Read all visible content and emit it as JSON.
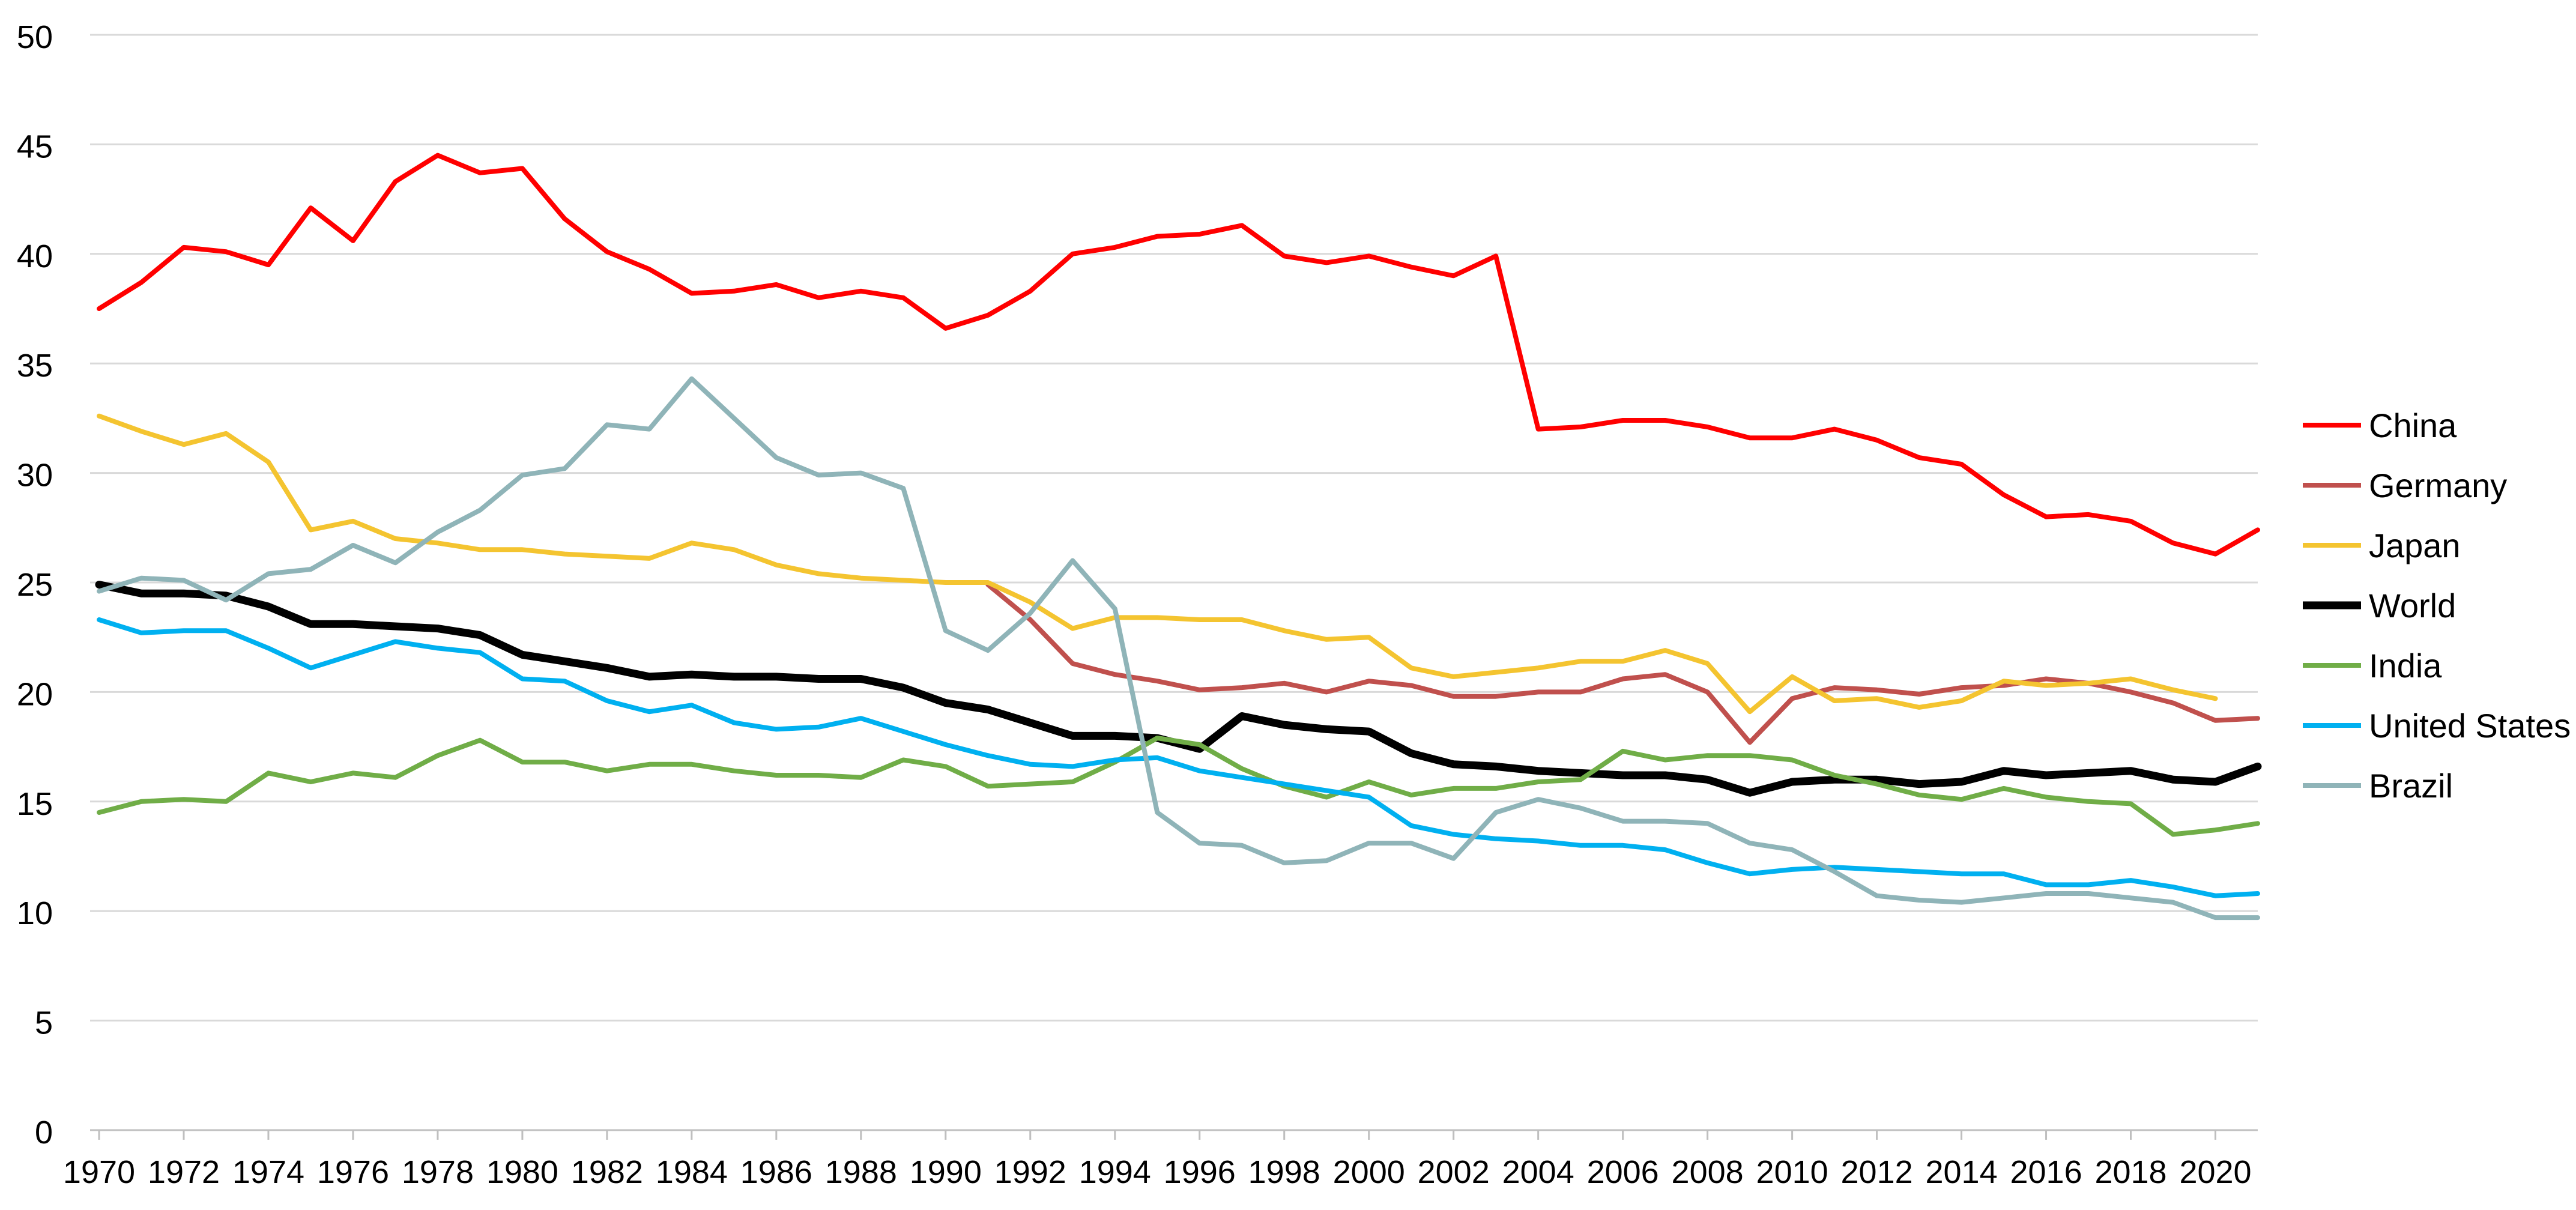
{
  "chart_data": {
    "type": "line",
    "title": "",
    "xlabel": "",
    "ylabel": "",
    "xlim": [
      1970,
      2021
    ],
    "ylim": [
      0,
      50
    ],
    "y_ticks": [
      0,
      5,
      10,
      15,
      20,
      25,
      30,
      35,
      40,
      45,
      50
    ],
    "x_ticks": [
      1970,
      1972,
      1974,
      1976,
      1978,
      1980,
      1982,
      1984,
      1986,
      1988,
      1990,
      1992,
      1994,
      1996,
      1998,
      2000,
      2002,
      2004,
      2006,
      2008,
      2010,
      2012,
      2014,
      2016,
      2018,
      2020
    ],
    "grid": "horizontal",
    "legend_position": "right",
    "x": [
      1970,
      1971,
      1972,
      1973,
      1974,
      1975,
      1976,
      1977,
      1978,
      1979,
      1980,
      1981,
      1982,
      1983,
      1984,
      1985,
      1986,
      1987,
      1988,
      1989,
      1990,
      1991,
      1992,
      1993,
      1994,
      1995,
      1996,
      1997,
      1998,
      1999,
      2000,
      2001,
      2002,
      2003,
      2004,
      2005,
      2006,
      2007,
      2008,
      2009,
      2010,
      2011,
      2012,
      2013,
      2014,
      2015,
      2016,
      2017,
      2018,
      2019,
      2020,
      2021
    ],
    "series": [
      {
        "name": "China",
        "color": "#ff0000",
        "values": [
          37.5,
          38.7,
          40.3,
          40.1,
          39.5,
          42.1,
          40.6,
          43.3,
          44.5,
          43.7,
          43.9,
          41.6,
          40.1,
          39.3,
          38.2,
          38.3,
          38.6,
          38.0,
          38.3,
          38.0,
          36.6,
          37.2,
          38.3,
          40.0,
          40.3,
          40.8,
          40.9,
          41.3,
          39.9,
          39.6,
          39.9,
          39.4,
          39.0,
          39.9,
          32.0,
          32.1,
          32.4,
          32.4,
          32.1,
          31.6,
          31.6,
          32.0,
          31.5,
          30.7,
          30.4,
          29.0,
          28.0,
          28.1,
          27.8,
          26.8,
          26.3,
          27.4
        ]
      },
      {
        "name": "Germany",
        "color": "#c0504d",
        "values": [
          null,
          null,
          null,
          null,
          null,
          null,
          null,
          null,
          null,
          null,
          null,
          null,
          null,
          null,
          null,
          null,
          null,
          null,
          null,
          null,
          null,
          24.9,
          23.3,
          21.3,
          20.8,
          20.5,
          20.1,
          20.2,
          20.4,
          20.0,
          20.5,
          20.3,
          19.8,
          19.8,
          20.0,
          20.0,
          20.6,
          20.8,
          20.0,
          17.7,
          19.7,
          20.2,
          20.1,
          19.9,
          20.2,
          20.3,
          20.6,
          20.4,
          20.0,
          19.5,
          18.7,
          18.8
        ]
      },
      {
        "name": "Japan",
        "color": "#f4c430",
        "values": [
          32.6,
          31.9,
          31.3,
          31.8,
          30.5,
          27.4,
          27.8,
          27.0,
          26.8,
          26.5,
          26.5,
          26.3,
          26.2,
          26.1,
          26.8,
          26.5,
          25.8,
          25.4,
          25.2,
          25.1,
          25.0,
          25.0,
          24.1,
          22.9,
          23.4,
          23.4,
          23.3,
          23.3,
          22.8,
          22.4,
          22.5,
          21.1,
          20.7,
          20.9,
          21.1,
          21.4,
          21.4,
          21.9,
          21.3,
          19.1,
          20.7,
          19.6,
          19.7,
          19.3,
          19.6,
          20.5,
          20.3,
          20.4,
          20.6,
          20.1,
          19.7,
          null
        ]
      },
      {
        "name": "World",
        "color": "#000000",
        "values": [
          24.9,
          24.5,
          24.5,
          24.4,
          23.9,
          23.1,
          23.1,
          23.0,
          22.9,
          22.6,
          21.7,
          21.4,
          21.1,
          20.7,
          20.8,
          20.7,
          20.7,
          20.6,
          20.6,
          20.2,
          19.5,
          19.2,
          18.6,
          18.0,
          18.0,
          17.9,
          17.4,
          18.9,
          18.5,
          18.3,
          18.2,
          17.2,
          16.7,
          16.6,
          16.4,
          16.3,
          16.2,
          16.2,
          16.0,
          15.4,
          15.9,
          16.0,
          16.0,
          15.8,
          15.9,
          16.4,
          16.2,
          16.3,
          16.4,
          16.0,
          15.9,
          16.6
        ]
      },
      {
        "name": "India",
        "color": "#70ad47",
        "values": [
          14.5,
          15.0,
          15.1,
          15.0,
          16.3,
          15.9,
          16.3,
          16.1,
          17.1,
          17.8,
          16.8,
          16.8,
          16.4,
          16.7,
          16.7,
          16.4,
          16.2,
          16.2,
          16.1,
          16.9,
          16.6,
          15.7,
          15.8,
          15.9,
          16.8,
          17.9,
          17.6,
          16.5,
          15.7,
          15.2,
          15.9,
          15.3,
          15.6,
          15.6,
          15.9,
          16.0,
          17.3,
          16.9,
          17.1,
          17.1,
          16.9,
          16.2,
          15.8,
          15.3,
          15.1,
          15.6,
          15.2,
          15.0,
          14.9,
          13.5,
          13.7,
          14.0
        ]
      },
      {
        "name": "United States",
        "color": "#00b0f0",
        "values": [
          23.3,
          22.7,
          22.8,
          22.8,
          22.0,
          21.1,
          21.7,
          22.3,
          22.0,
          21.8,
          20.6,
          20.5,
          19.6,
          19.1,
          19.4,
          18.6,
          18.3,
          18.4,
          18.8,
          18.2,
          17.6,
          17.1,
          16.7,
          16.6,
          16.9,
          17.0,
          16.4,
          16.1,
          15.8,
          15.5,
          15.2,
          13.9,
          13.5,
          13.3,
          13.2,
          13.0,
          13.0,
          12.8,
          12.2,
          11.7,
          11.9,
          12.0,
          11.9,
          11.8,
          11.7,
          11.7,
          11.2,
          11.2,
          11.4,
          11.1,
          10.7,
          10.8
        ]
      },
      {
        "name": "Brazil",
        "color": "#8fb4b8",
        "values": [
          24.6,
          25.2,
          25.1,
          24.2,
          25.4,
          25.6,
          26.7,
          25.9,
          27.3,
          28.3,
          29.9,
          30.2,
          32.2,
          32.0,
          34.3,
          32.5,
          30.7,
          29.9,
          30.0,
          29.3,
          22.8,
          21.9,
          23.6,
          26.0,
          23.8,
          14.5,
          13.1,
          13.0,
          12.2,
          12.3,
          13.1,
          13.1,
          12.4,
          14.5,
          15.1,
          14.7,
          14.1,
          14.1,
          14.0,
          13.1,
          12.8,
          11.8,
          10.7,
          10.5,
          10.4,
          10.6,
          10.8,
          10.8,
          10.6,
          10.4,
          9.7,
          9.7
        ]
      }
    ]
  }
}
